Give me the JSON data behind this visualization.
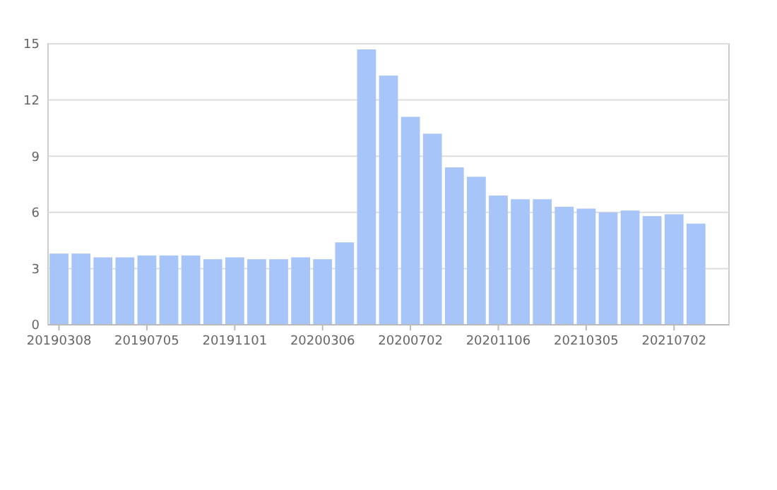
{
  "chart_data": {
    "type": "bar",
    "categories": [
      "20190308",
      null,
      null,
      null,
      "20190705",
      null,
      null,
      null,
      "20191101",
      null,
      null,
      null,
      "20200306",
      null,
      null,
      null,
      "20200702",
      null,
      null,
      null,
      "20201106",
      null,
      null,
      null,
      "20210305",
      null,
      null,
      null,
      "20210702",
      null,
      null
    ],
    "values": [
      3.8,
      3.8,
      3.6,
      3.6,
      3.7,
      3.7,
      3.7,
      3.5,
      3.6,
      3.5,
      3.5,
      3.6,
      3.5,
      4.4,
      14.7,
      13.3,
      11.1,
      10.2,
      8.4,
      7.9,
      6.9,
      6.7,
      6.7,
      6.3,
      6.2,
      6.0,
      6.1,
      5.8,
      5.9,
      5.4,
      null
    ],
    "color": "#a7c5f8",
    "ylim": [
      0,
      15
    ],
    "yticks": [
      0,
      3,
      6,
      9,
      12,
      15
    ],
    "grid": "y"
  }
}
